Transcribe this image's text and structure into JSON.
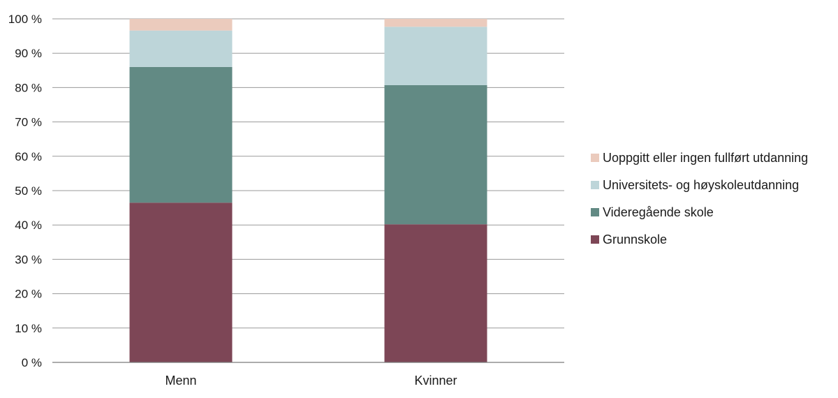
{
  "chart_data": {
    "type": "bar",
    "stacked": true,
    "categories": [
      "Menn",
      "Kvinner"
    ],
    "series": [
      {
        "name": "Grunnskole",
        "values": [
          46.5,
          40.2
        ],
        "color": "#7d4656"
      },
      {
        "name": "Videregående skole",
        "values": [
          39.5,
          40.5
        ],
        "color": "#628a84"
      },
      {
        "name": "Universitets- og høyskoleutdanning",
        "values": [
          10.6,
          17.0
        ],
        "color": "#bdd5d9"
      },
      {
        "name": "Uoppgitt eller ingen fullført utdanning",
        "values": [
          3.4,
          2.3
        ],
        "color": "#ebcbbd"
      }
    ],
    "ylim": [
      0,
      100
    ],
    "yticks": [
      "0 %",
      "10 %",
      "20 %",
      "30 %",
      "40 %",
      "50 %",
      "60 %",
      "70 %",
      "80 %",
      "90 %",
      "100 %"
    ],
    "legend_order": [
      3,
      2,
      1,
      0
    ],
    "legend_position": "right",
    "grid": true
  }
}
